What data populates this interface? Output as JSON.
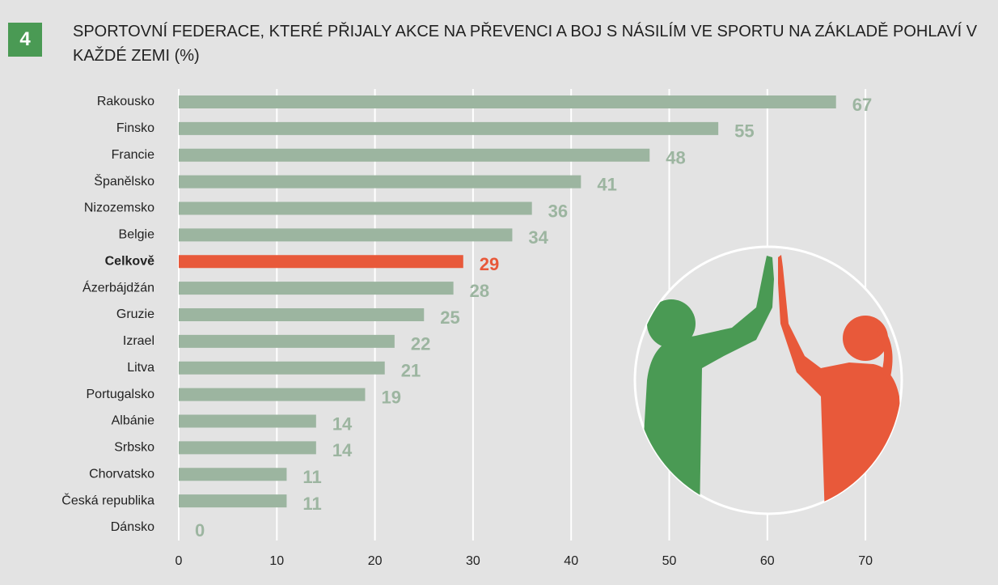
{
  "badge": "4",
  "chart_data": {
    "type": "hbar",
    "title": "SPORTOVNÍ FEDERACE, KTERÉ PŘIJALY AKCE NA PŘEVENCI A BOJ S NÁSILÍM VE SPORTU NA ZÁKLADĚ POHLAVÍ V KAŽDÉ ZEMI (%)",
    "categories": [
      "Rakousko",
      "Finsko",
      "Francie",
      "Španělsko",
      "Nizozemsko",
      "Belgie",
      "Celkově",
      "Ázerbájdžán",
      "Gruzie",
      "Izrael",
      "Litva",
      "Portugalsko",
      "Albánie",
      "Srbsko",
      "Chorvatsko",
      "Česká republika",
      "Dánsko"
    ],
    "values": [
      67,
      55,
      48,
      41,
      36,
      34,
      29,
      28,
      25,
      22,
      21,
      19,
      14,
      14,
      11,
      11,
      0
    ],
    "colors": [
      "#9cb5a0",
      "#9cb5a0",
      "#9cb5a0",
      "#9cb5a0",
      "#9cb5a0",
      "#9cb5a0",
      "#e8593a",
      "#9cb5a0",
      "#9cb5a0",
      "#9cb5a0",
      "#9cb5a0",
      "#9cb5a0",
      "#9cb5a0",
      "#9cb5a0",
      "#9cb5a0",
      "#9cb5a0",
      "#9cb5a0"
    ],
    "xlim": [
      0,
      73
    ],
    "xticks": [
      0,
      10,
      20,
      30,
      40,
      50,
      60,
      70
    ],
    "grid": true
  }
}
